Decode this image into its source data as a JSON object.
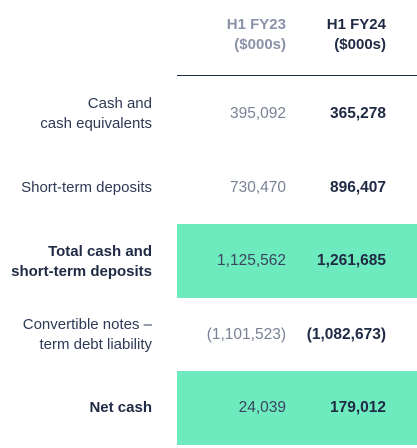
{
  "header": {
    "col_prev": {
      "line1": "H1 FY23",
      "line2": "($000s)"
    },
    "col_curr": {
      "line1": "H1 FY24",
      "line2": "($000s)"
    }
  },
  "rows": [
    {
      "label_line1": "Cash and",
      "label_line2": "cash equivalents",
      "prev": "395,092",
      "curr": "365,278"
    },
    {
      "label_line1": "Short-term deposits",
      "label_line2": "",
      "prev": "730,470",
      "curr": "896,407"
    },
    {
      "label_line1": "Total cash and",
      "label_line2": "short-term deposits",
      "prev": "1,125,562",
      "curr": "1,261,685"
    },
    {
      "label_line1": "Convertible notes –",
      "label_line2": "term debt liability",
      "prev": "(1,101,523)",
      "curr": "(1,082,673)"
    },
    {
      "label_line1": "Net cash",
      "label_line2": "",
      "prev": "24,039",
      "curr": "179,012"
    }
  ],
  "colors": {
    "highlight": "#6eebbe",
    "text_dark": "#1f2a44",
    "text_muted": "#8a93a8"
  }
}
